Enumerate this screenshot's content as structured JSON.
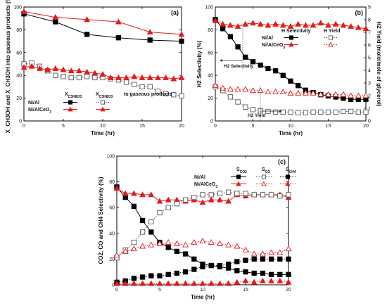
{
  "chart_data": [
    {
      "id": "a",
      "panel_label": "(a)",
      "type": "line",
      "xlabel": "Time (hr)",
      "ylabel": "X_CH3OH and X_CH3OH into gaseous products (%)",
      "xlim": [
        0,
        20
      ],
      "ylim": [
        0,
        100
      ],
      "xticks": [
        0,
        5,
        10,
        15,
        20
      ],
      "yticks": [
        0,
        20,
        40,
        60,
        80,
        100
      ],
      "legend": {
        "col1": "X",
        "col1_sub": "C3H8O3",
        "col2": "X",
        "col2_sub": "C3H8O3",
        "col2_suffix": " to gaseous products",
        "rows": [
          "Ni/Al",
          "Ni/AlCeO"
        ],
        "rows_sub": [
          "",
          "3"
        ]
      },
      "series": [
        {
          "key": "NiAl_X",
          "color": "#000000",
          "marker": "square",
          "filled": true,
          "dashed": false,
          "x": [
            0,
            4,
            8,
            12,
            16,
            20
          ],
          "y": [
            94,
            87,
            76,
            73,
            71,
            70
          ]
        },
        {
          "key": "NiAlCe_X",
          "color": "#e41a1c",
          "marker": "triangle",
          "filled": true,
          "dashed": false,
          "x": [
            0,
            4,
            8,
            12,
            16,
            20
          ],
          "y": [
            96,
            91,
            89,
            87,
            78,
            76
          ]
        },
        {
          "key": "NiAl_gas",
          "color": "#555555",
          "marker": "square",
          "filled": false,
          "dashed": true,
          "x": [
            0,
            1,
            2,
            3,
            4,
            5,
            6,
            7,
            8,
            9,
            10,
            11,
            12,
            13,
            14,
            15,
            16,
            17,
            18,
            19,
            20
          ],
          "y": [
            50,
            51,
            48,
            44,
            40,
            39,
            38,
            38,
            39,
            38,
            38,
            37,
            36,
            34,
            32,
            30,
            30,
            26,
            24,
            23,
            22
          ]
        },
        {
          "key": "NiAlCe_gas",
          "color": "#e41a1c",
          "marker": "triangle",
          "filled": true,
          "dashed": false,
          "x": [
            0,
            1,
            2,
            3,
            4,
            5,
            6,
            7,
            8,
            9,
            10,
            11,
            12,
            13,
            14,
            15,
            16,
            17,
            18,
            19,
            20
          ],
          "y": [
            47,
            48,
            46,
            45,
            46,
            45,
            44,
            44,
            43,
            42,
            41,
            38,
            38,
            38,
            39,
            38,
            38,
            38,
            38,
            37,
            38
          ]
        }
      ]
    },
    {
      "id": "b",
      "panel_label": "(b)",
      "type": "line",
      "xlabel": "Time (hr)",
      "ylabel": "H2 Selectivity (%)",
      "ylabel_right": "H2 Yield (mole/mole of glycerol)",
      "xlim": [
        0,
        20
      ],
      "ylim": [
        0,
        100
      ],
      "ylim_right": [
        0,
        9
      ],
      "xticks": [
        0,
        5,
        10,
        15,
        20
      ],
      "yticks": [
        0,
        20,
        40,
        60,
        80,
        100
      ],
      "yticks_right": [
        0,
        1,
        2,
        3,
        4,
        5,
        6,
        7,
        8,
        9
      ],
      "legend": {
        "col1": "H2 Selectivity",
        "col2": "H2 Yield",
        "rows": [
          "Ni/Al",
          "Ni/AlCeO"
        ],
        "rows_sub": [
          "",
          "3"
        ]
      },
      "annotations": [
        "H2 Selectivity",
        "H2 Yield"
      ],
      "series": [
        {
          "key": "NiAl_S",
          "color": "#000000",
          "marker": "square",
          "filled": true,
          "dashed": false,
          "axis": "left",
          "x": [
            0,
            1,
            2,
            3,
            4,
            5,
            6,
            7,
            8,
            9,
            10,
            11,
            12,
            13,
            14,
            15,
            16,
            17,
            18,
            19,
            20
          ],
          "y": [
            89,
            81,
            74,
            65,
            56,
            52,
            49,
            46,
            44,
            40,
            35,
            31,
            27,
            25,
            23,
            22,
            21,
            20,
            19,
            19,
            19
          ]
        },
        {
          "key": "NiAlCe_S",
          "color": "#e41a1c",
          "marker": "triangle",
          "filled": true,
          "dashed": false,
          "axis": "left",
          "x": [
            0,
            1,
            2,
            3,
            4,
            5,
            6,
            7,
            8,
            9,
            10,
            11,
            12,
            13,
            14,
            15,
            16,
            17,
            18,
            19,
            20
          ],
          "y": [
            88,
            85,
            84,
            83,
            85,
            86,
            85,
            84,
            85,
            84,
            83,
            85,
            84,
            84,
            86,
            84,
            85,
            84,
            83,
            82,
            81
          ]
        },
        {
          "key": "NiAl_Y",
          "color": "#555555",
          "marker": "square",
          "filled": false,
          "dashed": true,
          "axis": "right",
          "x": [
            0,
            1,
            2,
            3,
            4,
            5,
            6,
            7,
            8,
            9,
            10,
            11,
            12,
            13,
            14,
            15,
            16,
            17,
            18,
            19,
            20
          ],
          "y": [
            2.7,
            2.4,
            1.9,
            1.5,
            1.1,
            0.9,
            0.8,
            0.75,
            0.7,
            0.7,
            0.7,
            0.65,
            0.65,
            0.7,
            0.7,
            0.7,
            0.7,
            0.75,
            0.75,
            0.7,
            0.7
          ]
        },
        {
          "key": "NiAlCe_Y",
          "color": "#e41a1c",
          "marker": "triangle",
          "filled": false,
          "dashed": true,
          "axis": "right",
          "x": [
            0,
            1,
            2,
            3,
            4,
            5,
            6,
            7,
            8,
            9,
            10,
            11,
            12,
            13,
            14,
            15,
            16,
            17,
            18,
            19,
            20
          ],
          "y": [
            2.8,
            2.6,
            2.5,
            2.5,
            2.5,
            2.4,
            2.4,
            2.3,
            2.3,
            2.3,
            2.2,
            2.2,
            2.2,
            2.2,
            2.1,
            2.1,
            2.1,
            2.1,
            2.0,
            2.0,
            2.0
          ]
        }
      ]
    },
    {
      "id": "c",
      "panel_label": "(c)",
      "type": "line",
      "xlabel": "Time (hr)",
      "ylabel": "CO2, CO and CH4 Selectivity (%)",
      "xlim": [
        0,
        20
      ],
      "ylim": [
        0,
        100
      ],
      "xticks": [
        0,
        5,
        10,
        15,
        20
      ],
      "yticks": [
        0,
        20,
        40,
        60,
        80,
        100
      ],
      "legend": {
        "cols": [
          "S",
          "S",
          "S"
        ],
        "cols_sub": [
          "CO2",
          "CO",
          "CH4"
        ],
        "rows": [
          "Ni/Al",
          "Ni/AlCeO"
        ],
        "rows_sub": [
          "",
          "3"
        ]
      },
      "series": [
        {
          "key": "NiAl_CO2",
          "color": "#000000",
          "marker": "square",
          "filled": true,
          "dashed": false,
          "x": [
            0,
            1,
            2,
            3,
            4,
            5,
            6,
            7,
            8,
            9,
            10,
            11,
            12,
            13,
            14,
            15,
            16,
            17,
            18,
            19,
            20
          ],
          "y": [
            76,
            68,
            61,
            50,
            41,
            33,
            29,
            26,
            24,
            20,
            16,
            15,
            14,
            13,
            11,
            10,
            9,
            9,
            8,
            8,
            8
          ]
        },
        {
          "key": "NiAlCe_CO2",
          "color": "#e41a1c",
          "marker": "triangle",
          "filled": true,
          "dashed": false,
          "x": [
            0,
            1,
            2,
            3,
            4,
            5,
            6,
            7,
            8,
            9,
            10,
            11,
            12,
            13,
            14,
            15,
            16,
            17,
            18,
            19,
            20
          ],
          "y": [
            75,
            71,
            71,
            70,
            70,
            65,
            66,
            66,
            65,
            66,
            64,
            66,
            66,
            65,
            70,
            69,
            70,
            70,
            70,
            70,
            68
          ]
        },
        {
          "key": "NiAl_CO",
          "color": "#555555",
          "marker": "square",
          "filled": false,
          "dashed": true,
          "x": [
            0,
            1,
            2,
            3,
            4,
            5,
            6,
            7,
            8,
            9,
            10,
            11,
            12,
            13,
            14,
            15,
            16,
            17,
            18,
            19,
            20
          ],
          "y": [
            21,
            27,
            33,
            41,
            49,
            56,
            60,
            63,
            66,
            68,
            70,
            70,
            71,
            72,
            71,
            71,
            70,
            70,
            70,
            69,
            70
          ]
        },
        {
          "key": "NiAlCe_CO",
          "color": "#e41a1c",
          "marker": "triangle",
          "filled": false,
          "dashed": true,
          "x": [
            0,
            1,
            2,
            3,
            4,
            5,
            6,
            7,
            8,
            9,
            10,
            11,
            12,
            13,
            14,
            15,
            16,
            17,
            18,
            19,
            20
          ],
          "y": [
            23,
            26,
            28,
            30,
            31,
            32,
            33,
            32,
            31,
            33,
            34,
            33,
            32,
            31,
            30,
            27,
            24,
            24,
            25,
            25,
            28
          ]
        },
        {
          "key": "NiAl_CH4",
          "color": "#000000",
          "marker": "square",
          "filled": true,
          "dashed": true,
          "x": [
            0,
            1,
            2,
            3,
            4,
            5,
            6,
            7,
            8,
            9,
            10,
            11,
            12,
            13,
            14,
            15,
            16,
            17,
            18,
            19,
            20
          ],
          "y": [
            2,
            3,
            5,
            6,
            7,
            7,
            8,
            9,
            10,
            12,
            14,
            15,
            15,
            16,
            18,
            19,
            20,
            20,
            20,
            20,
            20
          ]
        },
        {
          "key": "NiAlCe_CH4",
          "color": "#e41a1c",
          "marker": "triangle",
          "filled": true,
          "dashed": true,
          "x": [
            0,
            1,
            2,
            3,
            4,
            5,
            6,
            7,
            8,
            9,
            10,
            11,
            12,
            13,
            14,
            15,
            16,
            17,
            18,
            19,
            20
          ],
          "y": [
            1,
            1,
            1,
            1,
            1,
            1,
            1,
            1,
            1,
            1,
            1,
            1,
            1,
            1,
            2,
            3,
            2,
            3,
            3,
            3,
            2
          ]
        }
      ]
    }
  ]
}
